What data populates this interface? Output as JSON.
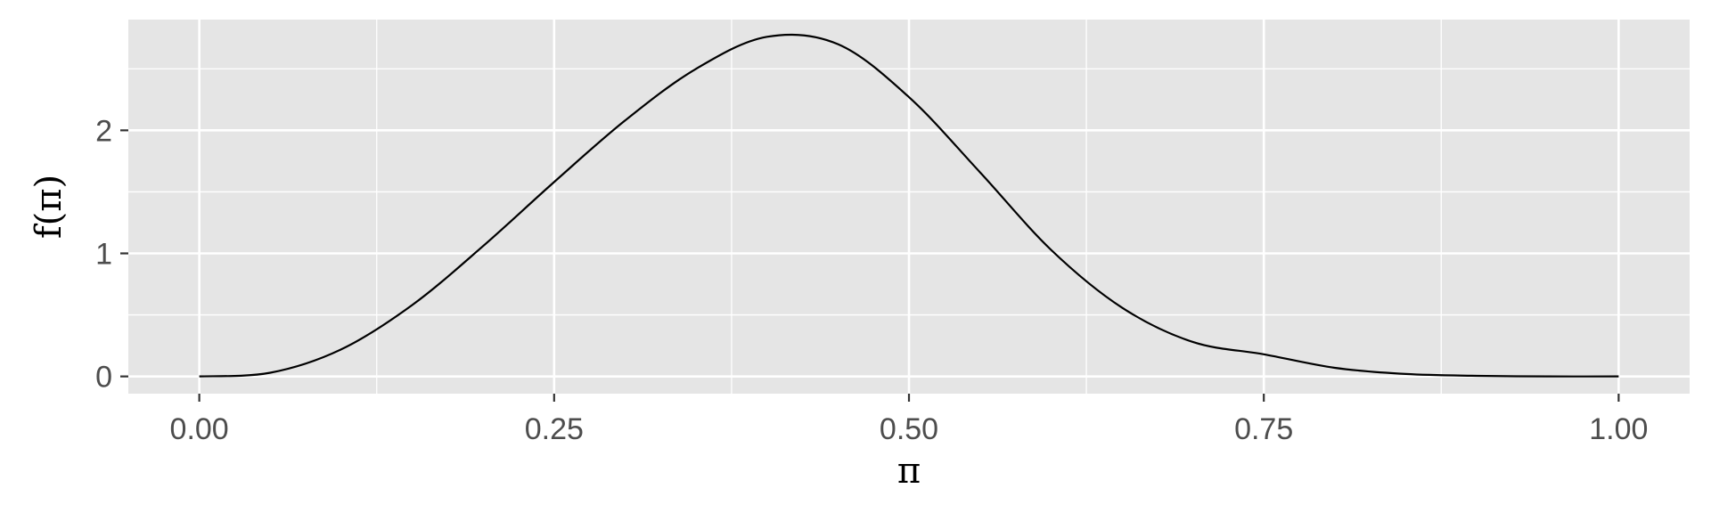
{
  "chart_data": {
    "type": "line",
    "title": "",
    "xlabel": "π",
    "ylabel": "f(π)",
    "xlim": [
      -0.05,
      1.05
    ],
    "ylim": [
      -0.14,
      2.9
    ],
    "x_ticks": [
      0.0,
      0.25,
      0.5,
      0.75,
      1.0
    ],
    "x_tick_labels": [
      "0.00",
      "0.25",
      "0.50",
      "0.75",
      "1.00"
    ],
    "y_ticks": [
      0,
      1,
      2
    ],
    "y_tick_labels": [
      "0",
      "1",
      "2"
    ],
    "grid": true,
    "legend": "none",
    "series": [
      {
        "x": [
          0.0,
          0.05,
          0.1,
          0.15,
          0.2,
          0.25,
          0.3,
          0.35,
          0.4,
          0.45,
          0.5,
          0.55,
          0.6,
          0.65,
          0.7,
          0.75,
          0.8,
          0.85,
          0.9,
          0.95,
          1.0
        ],
        "y": [
          0.0,
          0.03,
          0.22,
          0.58,
          1.06,
          1.58,
          2.08,
          2.5,
          2.76,
          2.7,
          2.27,
          1.66,
          1.03,
          0.56,
          0.28,
          0.18,
          0.07,
          0.02,
          0.005,
          0.0,
          0.0
        ]
      }
    ],
    "colors": {
      "panel": "#e5e5e5",
      "grid": "#ffffff",
      "line": "#000000",
      "tick_text": "#4d4d4d"
    }
  }
}
